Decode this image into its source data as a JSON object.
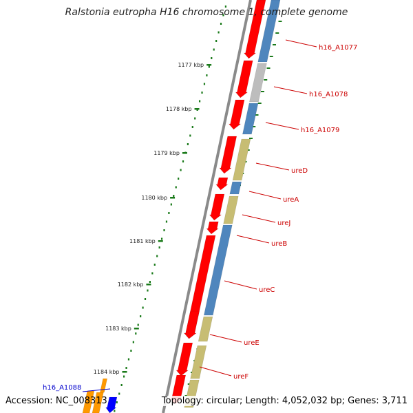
{
  "title": "Ralstonia eutropha H16 chromosome 1, complete genome",
  "footer": {
    "accession": "Accession: NC_008313",
    "summary": "Topology: circular; Length: 4,052,032 bp; Genes: 3,711"
  },
  "colors": {
    "backbone": "#8a8a8a",
    "tick": "#1a7a1a",
    "gene_red": "#ff0000",
    "cds_blue": "#4f86bd",
    "cds_khaki": "#c7bd73",
    "cds_gray": "#bdbdbd",
    "label_red": "#cc0000",
    "label_blue": "#0000cc",
    "orange": "#ff9900",
    "blue": "#0000ff"
  },
  "scale_ticks": [
    {
      "label": "1177 kbp"
    },
    {
      "label": "1178 kbp"
    },
    {
      "label": "1179 kbp"
    },
    {
      "label": "1180 kbp"
    },
    {
      "label": "1181 kbp"
    },
    {
      "label": "1182 kbp"
    },
    {
      "label": "1183 kbp"
    },
    {
      "label": "1184 kbp"
    }
  ],
  "gene_labels": [
    {
      "name": "h16_A1077",
      "color": "red"
    },
    {
      "name": "h16_A1078",
      "color": "red"
    },
    {
      "name": "h16_A1079",
      "color": "red"
    },
    {
      "name": "ureD",
      "color": "red"
    },
    {
      "name": "ureA",
      "color": "red"
    },
    {
      "name": "ureJ",
      "color": "red"
    },
    {
      "name": "ureB",
      "color": "red"
    },
    {
      "name": "ureC",
      "color": "red"
    },
    {
      "name": "ureE",
      "color": "red"
    },
    {
      "name": "ureF",
      "color": "red"
    },
    {
      "name": "h16_A1088",
      "color": "blue"
    }
  ]
}
